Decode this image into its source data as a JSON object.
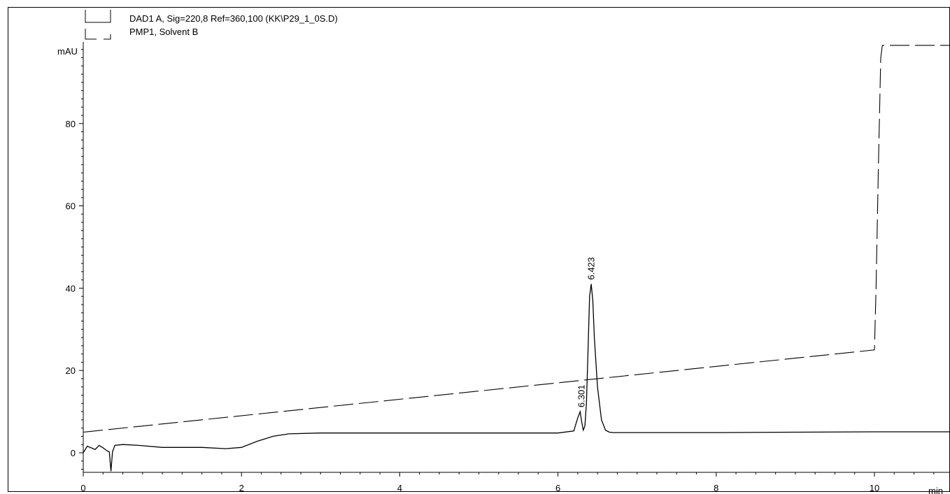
{
  "chart_data": {
    "type": "line",
    "xlabel": "min",
    "ylabel": "mAU",
    "xlim": [
      0,
      11
    ],
    "ylim": [
      -5,
      100
    ],
    "x_ticks": [
      0,
      2,
      4,
      6,
      8,
      10
    ],
    "y_ticks": [
      0,
      20,
      40,
      60,
      80
    ],
    "legend_position": "top-left",
    "series": [
      {
        "name": "DAD1 A, Sig=220,8 Ref=360,100 (KK\\P29_1_0S.D)",
        "style": "solid",
        "color": "#000000",
        "x": [
          0,
          0.05,
          0.1,
          0.15,
          0.2,
          0.25,
          0.3,
          0.33,
          0.35,
          0.37,
          0.4,
          0.5,
          0.7,
          1.0,
          1.5,
          1.8,
          2.0,
          2.2,
          2.4,
          2.6,
          3.0,
          4.0,
          5.0,
          6.0,
          6.2,
          6.25,
          6.28,
          6.3,
          6.32,
          6.34,
          6.36,
          6.38,
          6.4,
          6.42,
          6.44,
          6.46,
          6.5,
          6.55,
          6.6,
          6.65,
          6.7,
          7.0,
          8.0,
          9.0,
          10.0,
          11.0
        ],
        "y": [
          0,
          1.6,
          1.2,
          0.8,
          1.8,
          1.2,
          0.5,
          0.2,
          -4.5,
          0.2,
          1.8,
          2.0,
          1.8,
          1.3,
          1.3,
          1.0,
          1.3,
          2.8,
          4.0,
          4.6,
          4.8,
          4.8,
          4.8,
          4.8,
          5.3,
          8.5,
          10.0,
          7.5,
          5.5,
          6.5,
          12.0,
          25.0,
          38.0,
          41.0,
          37.0,
          28.0,
          16.0,
          8.0,
          5.5,
          5.0,
          4.9,
          4.9,
          4.9,
          5.0,
          5.1,
          5.1
        ],
        "peaks": [
          {
            "x": 6.301,
            "y": 10.0,
            "label": "6.301"
          },
          {
            "x": 6.423,
            "y": 41.0,
            "label": "6.423"
          }
        ]
      },
      {
        "name": "PMP1, Solvent B",
        "style": "dashed",
        "color": "#000000",
        "x": [
          0,
          10.0,
          10.02,
          10.05,
          10.08,
          10.1,
          11.0
        ],
        "y": [
          5.0,
          25.0,
          40.0,
          70.0,
          96.0,
          99.0,
          99.0
        ]
      }
    ],
    "legend_entries": [
      {
        "label": "DAD1 A, Sig=220,8 Ref=360,100 (KK\\P29_1_0S.D)",
        "style": "solid"
      },
      {
        "label": "PMP1, Solvent B",
        "style": "dashed"
      }
    ]
  }
}
